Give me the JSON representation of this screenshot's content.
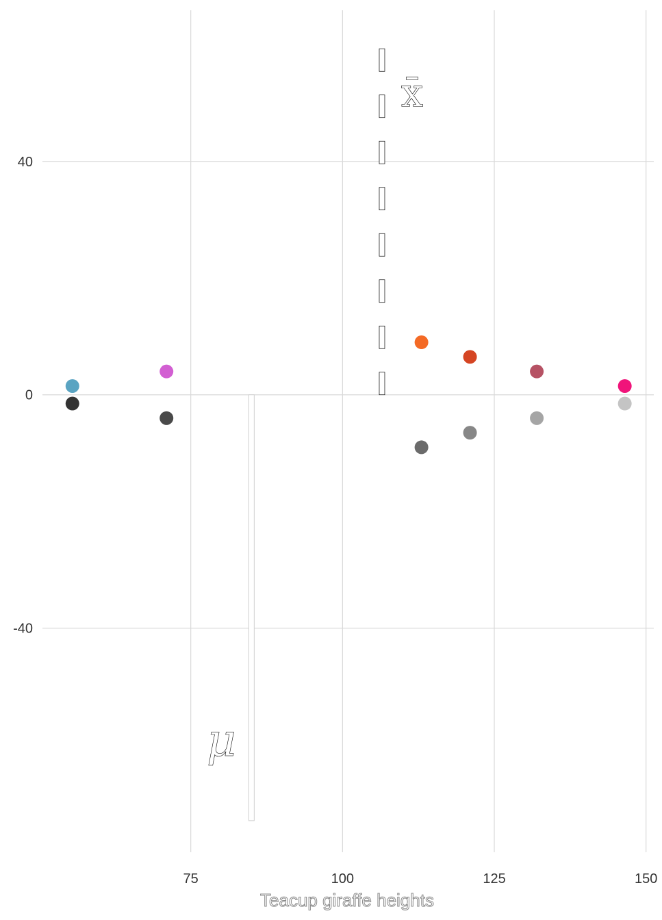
{
  "chart_data": {
    "type": "scatter",
    "xlabel": "Teacup giraffe heights",
    "xlim": [
      50,
      151.5
    ],
    "ylim": [
      -79,
      66.5
    ],
    "xticks": [
      75,
      100,
      125,
      150
    ],
    "yticks": [
      40,
      0,
      -40
    ],
    "grid": true,
    "points_above": [
      {
        "x": 55.5,
        "y": 1.5,
        "color": "#5aa4c2"
      },
      {
        "x": 71,
        "y": 4,
        "color": "#d25fd2"
      },
      {
        "x": 113,
        "y": 9,
        "color": "#f46a25"
      },
      {
        "x": 121,
        "y": 6.5,
        "color": "#d54523"
      },
      {
        "x": 132,
        "y": 4,
        "color": "#b65264"
      },
      {
        "x": 146.5,
        "y": 1.5,
        "color": "#f0147a"
      }
    ],
    "points_below": [
      {
        "x": 55.5,
        "y": -1.5,
        "color": "#333333"
      },
      {
        "x": 71,
        "y": -4,
        "color": "#4a4a4a"
      },
      {
        "x": 113,
        "y": -9,
        "color": "#6b6b6b"
      },
      {
        "x": 121,
        "y": -6.5,
        "color": "#878787"
      },
      {
        "x": 132,
        "y": -4,
        "color": "#a5a5a5"
      },
      {
        "x": 146.5,
        "y": -1.5,
        "color": "#c4c4c4"
      }
    ],
    "mean_line": {
      "x": 85,
      "y_from": 0,
      "y_to": -73,
      "label": "μ"
    },
    "sample_mean_line": {
      "x": 106.5,
      "y_from": 0,
      "y_to": 60,
      "label": "x̄"
    }
  }
}
